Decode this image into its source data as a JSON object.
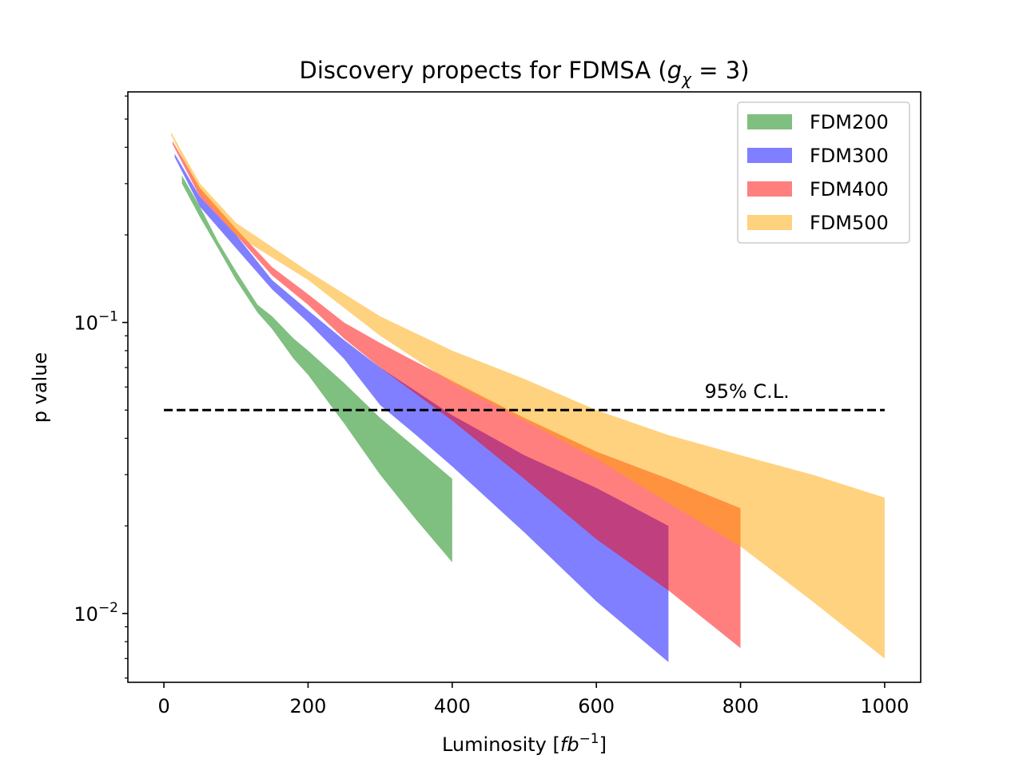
{
  "chart_data": {
    "type": "area",
    "title_prefix": "Discovery propects for FDMSA (",
    "title_var": "g",
    "title_sub": "χ",
    "title_suffix": " = 3)",
    "xlabel_prefix": "Luminosity [",
    "xlabel_var": "fb",
    "xlabel_sup": "−1",
    "xlabel_suffix": "]",
    "ylabel": "p value",
    "xlim": [
      -50,
      1050
    ],
    "ylim": [
      0.0058,
      0.62
    ],
    "yscale": "log",
    "x_ticks": [
      0,
      200,
      400,
      600,
      800,
      1000
    ],
    "x_tick_labels": [
      "0",
      "200",
      "400",
      "600",
      "800",
      "1000"
    ],
    "y_major_ticks": [
      {
        "value": 0.1,
        "base": "10",
        "exp": "−1"
      },
      {
        "value": 0.01,
        "base": "10",
        "exp": "−2"
      }
    ],
    "legend_position": "top-right",
    "series": [
      {
        "name": "FDM200",
        "color": "#008000",
        "opacity": 0.5,
        "x": [
          25,
          50,
          75,
          100,
          130,
          150,
          180,
          200,
          250,
          300,
          350,
          400
        ],
        "upper": [
          0.32,
          0.25,
          0.19,
          0.15,
          0.115,
          0.105,
          0.088,
          0.08,
          0.062,
          0.047,
          0.037,
          0.029
        ],
        "lower": [
          0.3,
          0.23,
          0.18,
          0.14,
          0.108,
          0.095,
          0.075,
          0.066,
          0.045,
          0.03,
          0.021,
          0.015
        ]
      },
      {
        "name": "FDM300",
        "color": "#0000ff",
        "opacity": 0.5,
        "x": [
          15,
          50,
          100,
          150,
          200,
          250,
          300,
          350,
          400,
          500,
          600,
          700
        ],
        "upper": [
          0.38,
          0.27,
          0.2,
          0.14,
          0.11,
          0.087,
          0.07,
          0.058,
          0.048,
          0.035,
          0.027,
          0.02
        ],
        "lower": [
          0.37,
          0.25,
          0.18,
          0.13,
          0.1,
          0.075,
          0.052,
          0.041,
          0.032,
          0.019,
          0.011,
          0.0068
        ]
      },
      {
        "name": "FDM400",
        "color": "#ff0000",
        "opacity": 0.5,
        "x": [
          12,
          50,
          100,
          150,
          200,
          250,
          300,
          400,
          500,
          600,
          700,
          800
        ],
        "upper": [
          0.42,
          0.29,
          0.21,
          0.155,
          0.125,
          0.1,
          0.085,
          0.063,
          0.047,
          0.036,
          0.029,
          0.023
        ],
        "lower": [
          0.41,
          0.27,
          0.2,
          0.145,
          0.115,
          0.088,
          0.07,
          0.046,
          0.029,
          0.018,
          0.012,
          0.0076
        ]
      },
      {
        "name": "FDM500",
        "color": "#ffa500",
        "opacity": 0.5,
        "x": [
          10,
          50,
          100,
          200,
          300,
          400,
          500,
          600,
          700,
          800,
          900,
          1000
        ],
        "upper": [
          0.45,
          0.3,
          0.22,
          0.15,
          0.105,
          0.08,
          0.064,
          0.05,
          0.041,
          0.035,
          0.03,
          0.025
        ],
        "lower": [
          0.44,
          0.28,
          0.2,
          0.14,
          0.09,
          0.062,
          0.046,
          0.034,
          0.024,
          0.017,
          0.011,
          0.007
        ]
      }
    ],
    "reference_line": {
      "y": 0.05,
      "x": [
        0,
        1000
      ],
      "style": "dashed",
      "color": "#000000"
    },
    "annotation": {
      "text": "95% C.L.",
      "x": 750,
      "y": 0.055
    }
  }
}
